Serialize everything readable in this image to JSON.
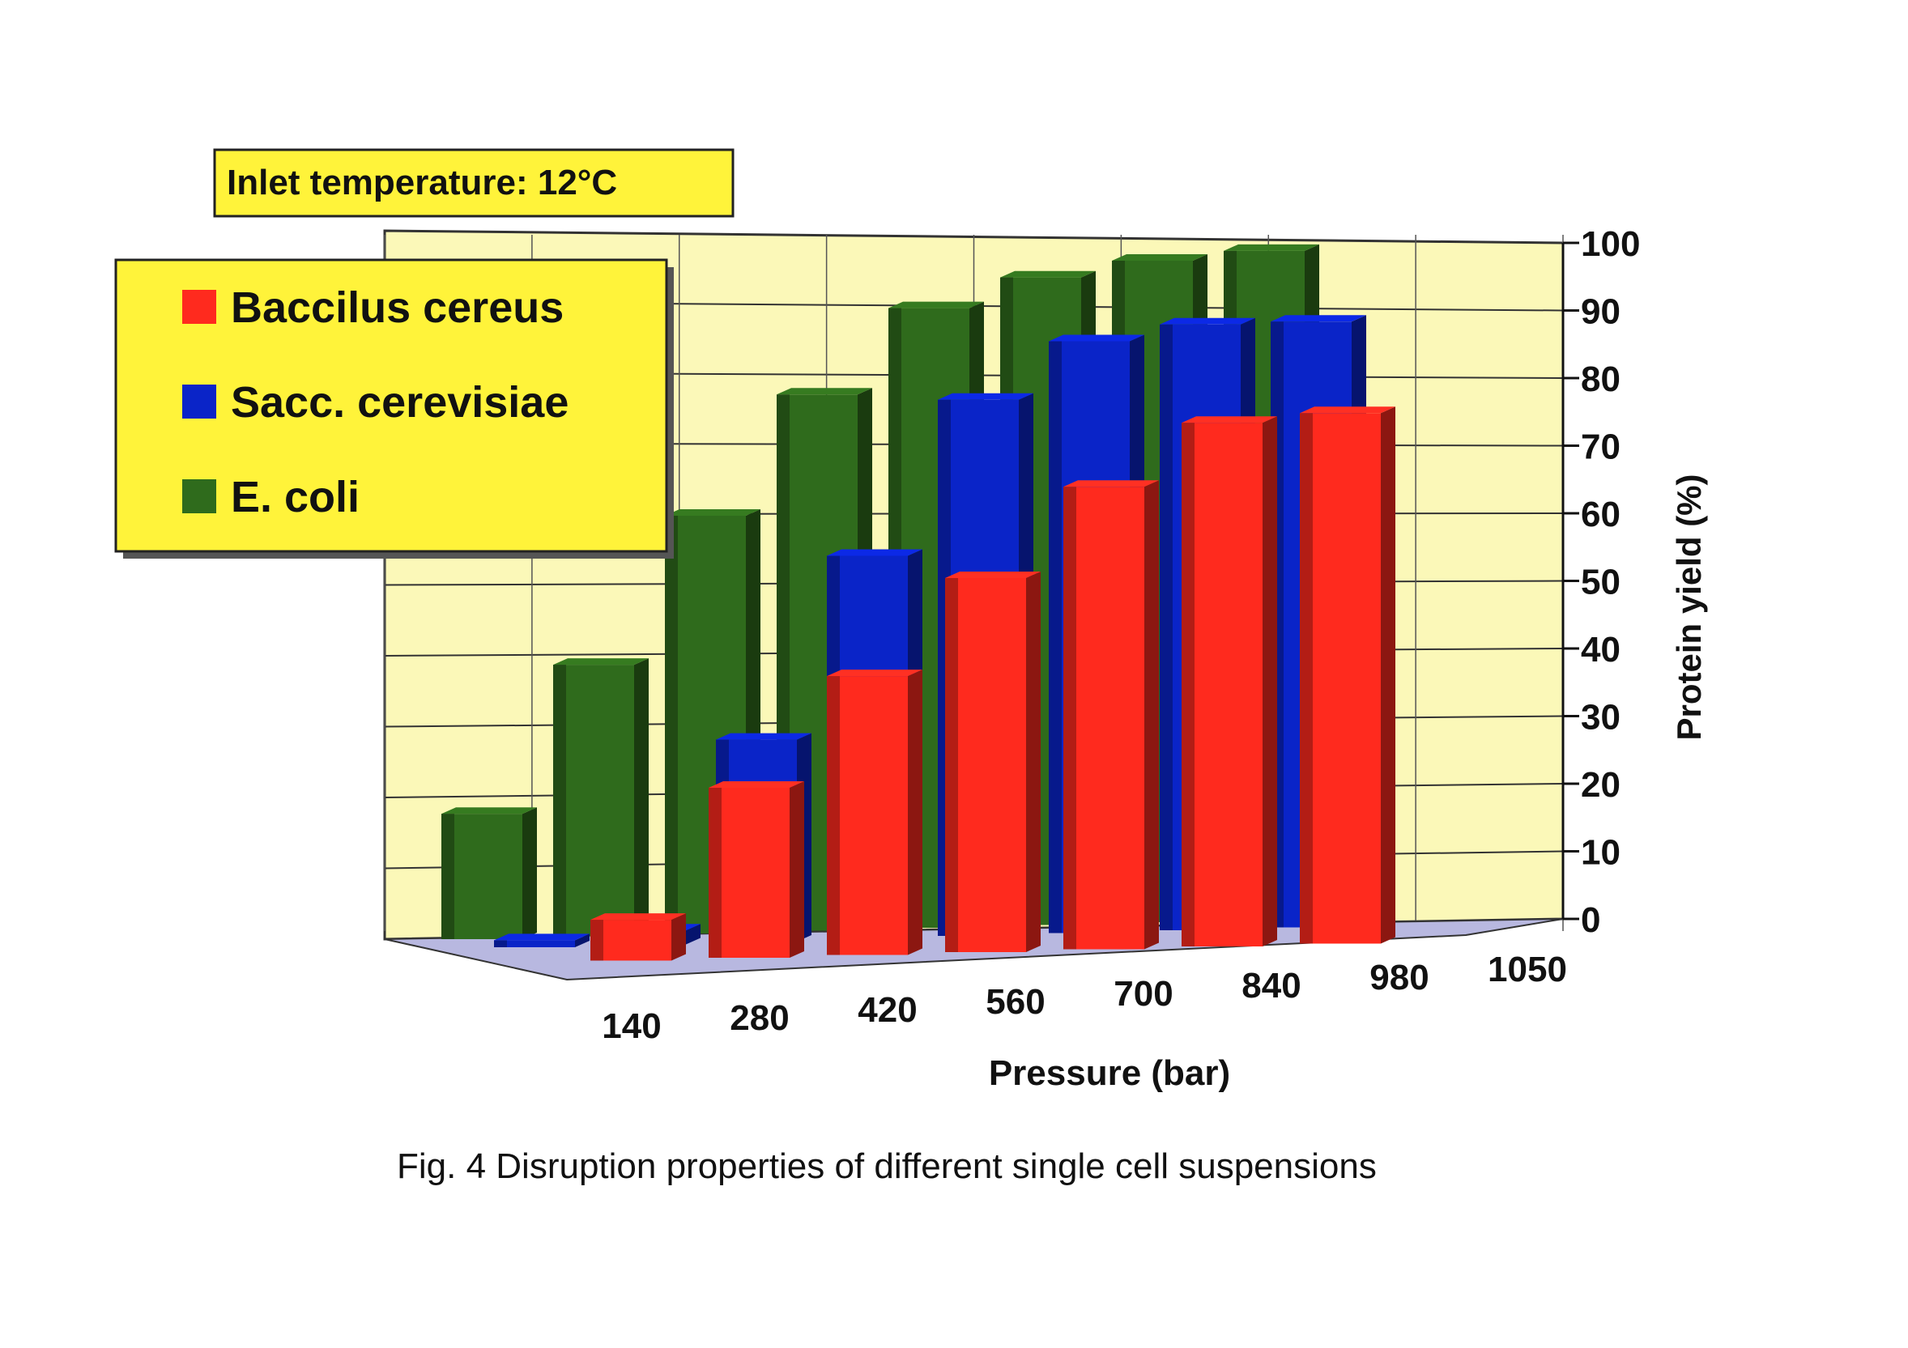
{
  "chart_data": {
    "type": "bar",
    "style": "3d-grouped",
    "annotation": "Inlet temperature: 12°C",
    "xlabel": "Pressure (bar)",
    "ylabel": "Protein yield (%)",
    "ylim": [
      0,
      100
    ],
    "yticks": [
      "0",
      "10",
      "20",
      "30",
      "40",
      "50",
      "60",
      "70",
      "80",
      "90",
      "100"
    ],
    "categories": [
      "140",
      "280",
      "420",
      "560",
      "700",
      "840",
      "980",
      "1050"
    ],
    "series": [
      {
        "name": "Baccilus cereus",
        "color": "#ff2a1e",
        "values": [
          null,
          6,
          25,
          41,
          55,
          68,
          77,
          78
        ]
      },
      {
        "name": "Sacc. cerevisiae",
        "color": "#0a24c8",
        "values": [
          1,
          2,
          29,
          55,
          77,
          85,
          87,
          87
        ]
      },
      {
        "name": "E. coli",
        "color": "#2f6b1c",
        "values": [
          18,
          39,
          60,
          77,
          89,
          93,
          95,
          96
        ]
      }
    ],
    "grid": true,
    "legend_position": "top-left",
    "caption": "Fig. 4 Disruption properties of different single cell suspensions"
  }
}
